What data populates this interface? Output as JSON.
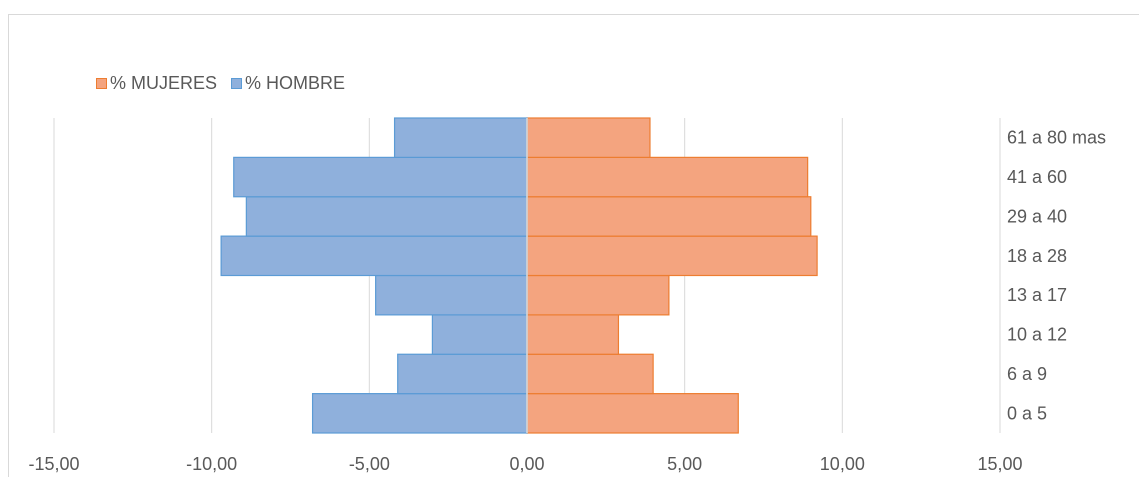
{
  "chart_data": {
    "type": "bar",
    "orientation": "horizontal",
    "title": "",
    "categories": [
      "0 a 5",
      "6 a 9",
      "10 a 12",
      "13 a 17",
      "18 a 28",
      "29 a 40",
      "41 a 60",
      "61 a 80 mas"
    ],
    "series": [
      {
        "name": "% MUJERES",
        "color": "#f4a47f",
        "values": [
          6.7,
          4.0,
          2.9,
          4.5,
          9.2,
          9.0,
          8.9,
          3.9
        ]
      },
      {
        "name": "% HOMBRE",
        "color": "#8fb0dc",
        "values": [
          -6.8,
          -4.1,
          -3.0,
          -4.8,
          -9.7,
          -8.9,
          -9.3,
          -4.2
        ]
      }
    ],
    "xlim": [
      -15,
      15
    ],
    "xticks": [
      "-15,00",
      "-10,00",
      "-5,00",
      "0,00",
      "5,00",
      "10,00",
      "15,00"
    ],
    "xtick_values": [
      -15,
      -10,
      -5,
      0,
      5,
      10,
      15
    ],
    "grid": true,
    "legend_position": "top-left",
    "category_axis_position": "right"
  }
}
